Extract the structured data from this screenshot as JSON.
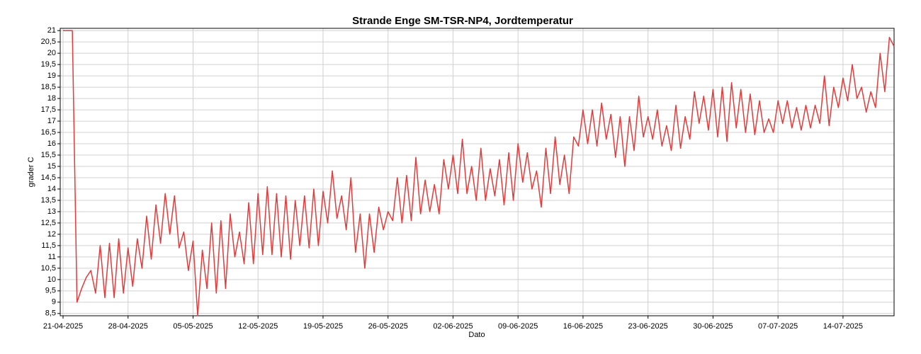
{
  "chart_data": {
    "type": "line",
    "title": "Strande Enge SM-TSR-NP4, Jordtemperatur",
    "xlabel": "Dato",
    "ylabel": "grader C",
    "categories": [
      "21-04-2025",
      null,
      null,
      null,
      null,
      null,
      null,
      null,
      null,
      null,
      null,
      null,
      null,
      null,
      "28-04-2025",
      null,
      null,
      null,
      null,
      null,
      null,
      null,
      null,
      null,
      null,
      null,
      null,
      null,
      "05-05-2025",
      null,
      null,
      null,
      null,
      null,
      null,
      null,
      null,
      null,
      null,
      null,
      null,
      null,
      "12-05-2025",
      null,
      null,
      null,
      null,
      null,
      null,
      null,
      null,
      null,
      null,
      null,
      null,
      null,
      "19-05-2025",
      null,
      null,
      null,
      null,
      null,
      null,
      null,
      null,
      null,
      null,
      null,
      null,
      null,
      "26-05-2025",
      null,
      null,
      null,
      null,
      null,
      null,
      null,
      null,
      null,
      null,
      null,
      null,
      null,
      "02-06-2025",
      null,
      null,
      null,
      null,
      null,
      null,
      null,
      null,
      null,
      null,
      null,
      null,
      null,
      "09-06-2025",
      null,
      null,
      null,
      null,
      null,
      null,
      null,
      null,
      null,
      null,
      null,
      null,
      null,
      "16-06-2025",
      null,
      null,
      null,
      null,
      null,
      null,
      null,
      null,
      null,
      null,
      null,
      null,
      null,
      "23-06-2025",
      null,
      null,
      null,
      null,
      null,
      null,
      null,
      null,
      null,
      null,
      null,
      null,
      null,
      "30-06-2025",
      null,
      null,
      null,
      null,
      null,
      null,
      null,
      null,
      null,
      null,
      null,
      null,
      null,
      "07-07-2025",
      null,
      null,
      null,
      null,
      null,
      null,
      null,
      null,
      null,
      null,
      null,
      null,
      null,
      "14-07-2025",
      null,
      null,
      null,
      null,
      null,
      null,
      null,
      null,
      null,
      null,
      null
    ],
    "series": [
      {
        "name": "Jordtemperatur",
        "color": "#e03c3c",
        "values": [
          21,
          21,
          21,
          9,
          9.6,
          10.1,
          10.4,
          9.4,
          11.5,
          9.2,
          11.6,
          9.2,
          11.8,
          9.4,
          11.4,
          9.7,
          11.8,
          10.5,
          12.8,
          10.9,
          13.3,
          11.6,
          13.8,
          12.0,
          13.7,
          11.4,
          12.1,
          10.4,
          11.7,
          8.4,
          11.3,
          9.6,
          12.5,
          9.4,
          12.6,
          9.6,
          12.9,
          11.0,
          12.1,
          10.7,
          13.4,
          10.7,
          13.8,
          11.1,
          14.1,
          11.1,
          13.8,
          11.0,
          13.7,
          10.9,
          13.5,
          11.5,
          13.7,
          11.4,
          14.0,
          11.5,
          13.9,
          12.5,
          14.8,
          12.7,
          13.7,
          12.2,
          14.5,
          11.2,
          12.9,
          10.5,
          12.9,
          11.2,
          13.2,
          12.2,
          13.0,
          12.6,
          14.5,
          12.5,
          14.6,
          12.6,
          15.4,
          12.9,
          14.4,
          13.0,
          14.2,
          12.9,
          15.3,
          14.0,
          15.5,
          13.8,
          16.2,
          13.8,
          15.0,
          13.5,
          15.8,
          13.5,
          14.9,
          13.7,
          15.3,
          13.3,
          15.6,
          13.5,
          16.0,
          14.3,
          15.6,
          14.0,
          14.8,
          13.2,
          15.8,
          13.8,
          16.3,
          14.2,
          15.5,
          13.8,
          16.3,
          15.9,
          17.5,
          16.0,
          17.5,
          15.9,
          17.8,
          16.2,
          17.3,
          15.4,
          17.2,
          15.0,
          17.2,
          15.7,
          18.1,
          16.3,
          17.2,
          16.2,
          17.5,
          15.9,
          16.8,
          15.7,
          17.7,
          15.8,
          17.2,
          16.2,
          18.3,
          16.9,
          18.1,
          16.6,
          18.4,
          16.3,
          18.5,
          16.1,
          18.7,
          16.7,
          18.4,
          16.5,
          18.2,
          16.4,
          17.9,
          16.5,
          17.1,
          16.5,
          17.9,
          16.9,
          17.9,
          16.7,
          17.6,
          16.6,
          17.7,
          16.7,
          17.7,
          16.9,
          19.0,
          16.8,
          18.5,
          17.6,
          18.9,
          17.9,
          19.5,
          18.0,
          18.5,
          17.4,
          18.3,
          17.6,
          20.0,
          18.3,
          20.7,
          20.3
        ]
      }
    ],
    "ylim": [
      8.4,
      21.1
    ],
    "yticks": [
      {
        "value": 8.5,
        "label": "8,5"
      },
      9,
      {
        "value": 9.5,
        "label": "9,5"
      },
      10,
      {
        "value": 10.5,
        "label": "10,5"
      },
      11,
      {
        "value": 11.5,
        "label": "11,5"
      },
      12,
      {
        "value": 12.5,
        "label": "12,5"
      },
      13,
      {
        "value": 13.5,
        "label": "13,5"
      },
      14,
      {
        "value": 14.5,
        "label": "14,5"
      },
      15,
      {
        "value": 15.5,
        "label": "15,5"
      },
      16,
      {
        "value": 16.5,
        "label": "16,5"
      },
      17,
      {
        "value": 17.5,
        "label": "17,5"
      },
      18,
      {
        "value": 18.5,
        "label": "18,5"
      },
      19,
      {
        "value": 19.5,
        "label": "19,5"
      },
      20,
      {
        "value": 20.5,
        "label": "20,5"
      },
      21
    ],
    "grid": true
  }
}
